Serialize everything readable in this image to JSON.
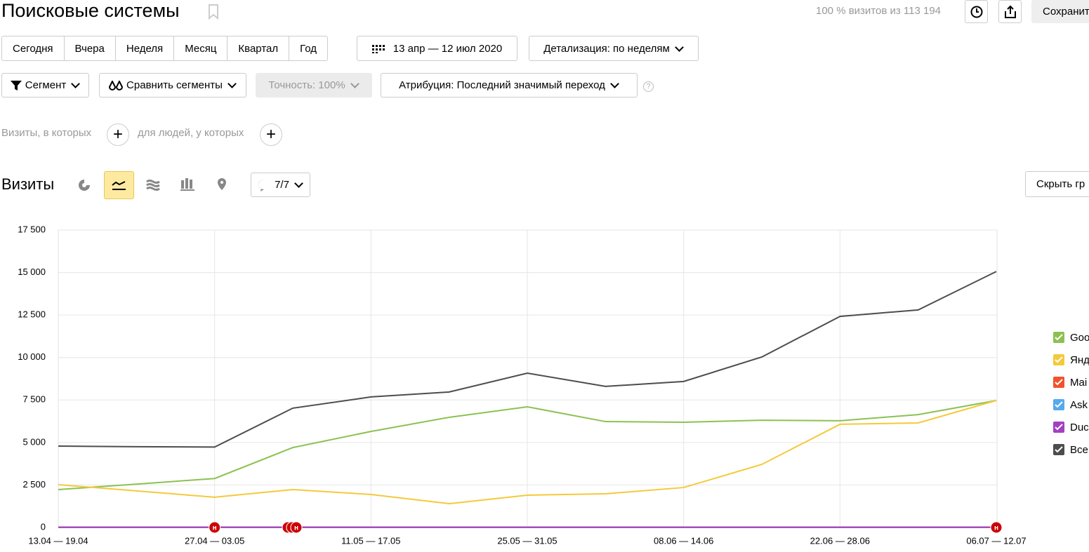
{
  "header": {
    "title": "Поисковые системы",
    "stats": "100 % визитов из 113 194",
    "save": "Сохранит"
  },
  "periods": [
    "Сегодня",
    "Вчера",
    "Неделя",
    "Месяц",
    "Квартал",
    "Год"
  ],
  "date_range": "13 апр — 12 июл 2020",
  "detail": "Детализация: по неделям",
  "filters": {
    "segment": "Сегмент",
    "compare": "Сравнить сегменты",
    "accuracy": "Точность: 100%",
    "attribution": "Атрибуция: Последний значимый переход",
    "help": "?"
  },
  "conditions": {
    "visits": "Визиты, в которых",
    "people": "для людей, у которых"
  },
  "chart_header": {
    "title": "Визиты",
    "notes": "7/7",
    "hide": "Скрыть гр"
  },
  "chart_data": {
    "type": "line",
    "categories": [
      "13.04 — 19.04",
      null,
      "27.04 — 03.05",
      null,
      "11.05 — 17.05",
      null,
      "25.05 — 31.05",
      null,
      "08.06 — 14.06",
      null,
      "22.06 — 28.06",
      null,
      "06.07 — 12.07"
    ],
    "series": [
      {
        "name": "Goo",
        "color": "#8cc152",
        "values": [
          2230,
          2550,
          2880,
          4700,
          5650,
          6480,
          7100,
          6230,
          6190,
          6310,
          6280,
          6640,
          7470
        ]
      },
      {
        "name": "Янд",
        "color": "#f5c93a",
        "values": [
          2520,
          2150,
          1780,
          2230,
          1940,
          1400,
          1900,
          1980,
          2350,
          3710,
          6070,
          6150,
          7470
        ]
      },
      {
        "name": "Mai",
        "color": "#f0532d",
        "values": [
          20,
          20,
          20,
          20,
          20,
          20,
          20,
          20,
          20,
          20,
          20,
          20,
          20
        ]
      },
      {
        "name": "Ask",
        "color": "#55aaee",
        "values": [
          5,
          5,
          5,
          5,
          5,
          5,
          5,
          5,
          5,
          5,
          5,
          5,
          5
        ]
      },
      {
        "name": "Duc",
        "color": "#a43fc1",
        "values": [
          10,
          10,
          10,
          10,
          10,
          10,
          10,
          10,
          10,
          10,
          10,
          10,
          10
        ]
      },
      {
        "name": "Все",
        "color": "#4d4d4d",
        "values": [
          4790,
          4750,
          4730,
          7020,
          7680,
          7970,
          9080,
          8300,
          8590,
          10030,
          12420,
          12800,
          15060
        ]
      }
    ],
    "ylim": [
      0,
      17500
    ],
    "yticks": [
      0,
      {
        "value": 2500,
        "label": "2 500"
      },
      {
        "value": 5000,
        "label": "5 000"
      },
      {
        "value": 7500,
        "label": "7 500"
      },
      {
        "value": 10000,
        "label": "10 000"
      },
      {
        "value": 12500,
        "label": "12 500"
      },
      {
        "value": 15000,
        "label": "15 000"
      },
      {
        "value": 17500,
        "label": "17 500"
      }
    ],
    "grid": true,
    "legend": "right",
    "annotations": [
      {
        "x": 2,
        "text": "н"
      },
      {
        "x": 3,
        "text": "н"
      },
      {
        "x": 3,
        "text": "н"
      },
      {
        "x": 3,
        "text": "н"
      },
      {
        "x": 12,
        "text": "н"
      }
    ]
  }
}
